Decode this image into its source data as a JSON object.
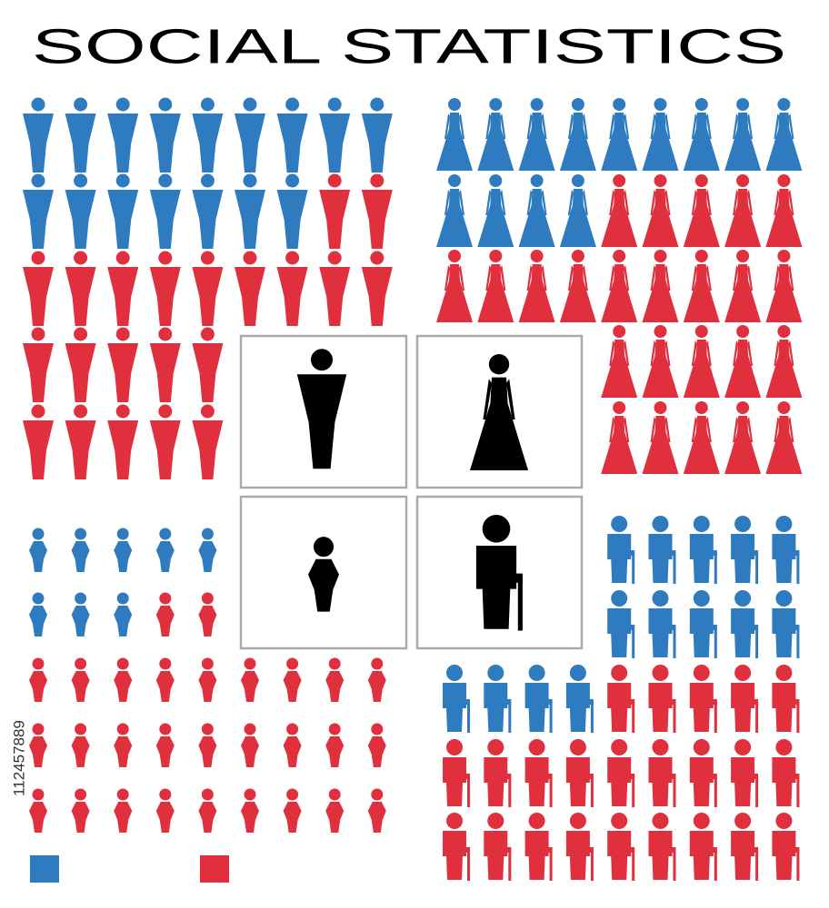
{
  "header": {
    "title": "SOCIAL STATISTICS"
  },
  "side_text": "112457889"
}
